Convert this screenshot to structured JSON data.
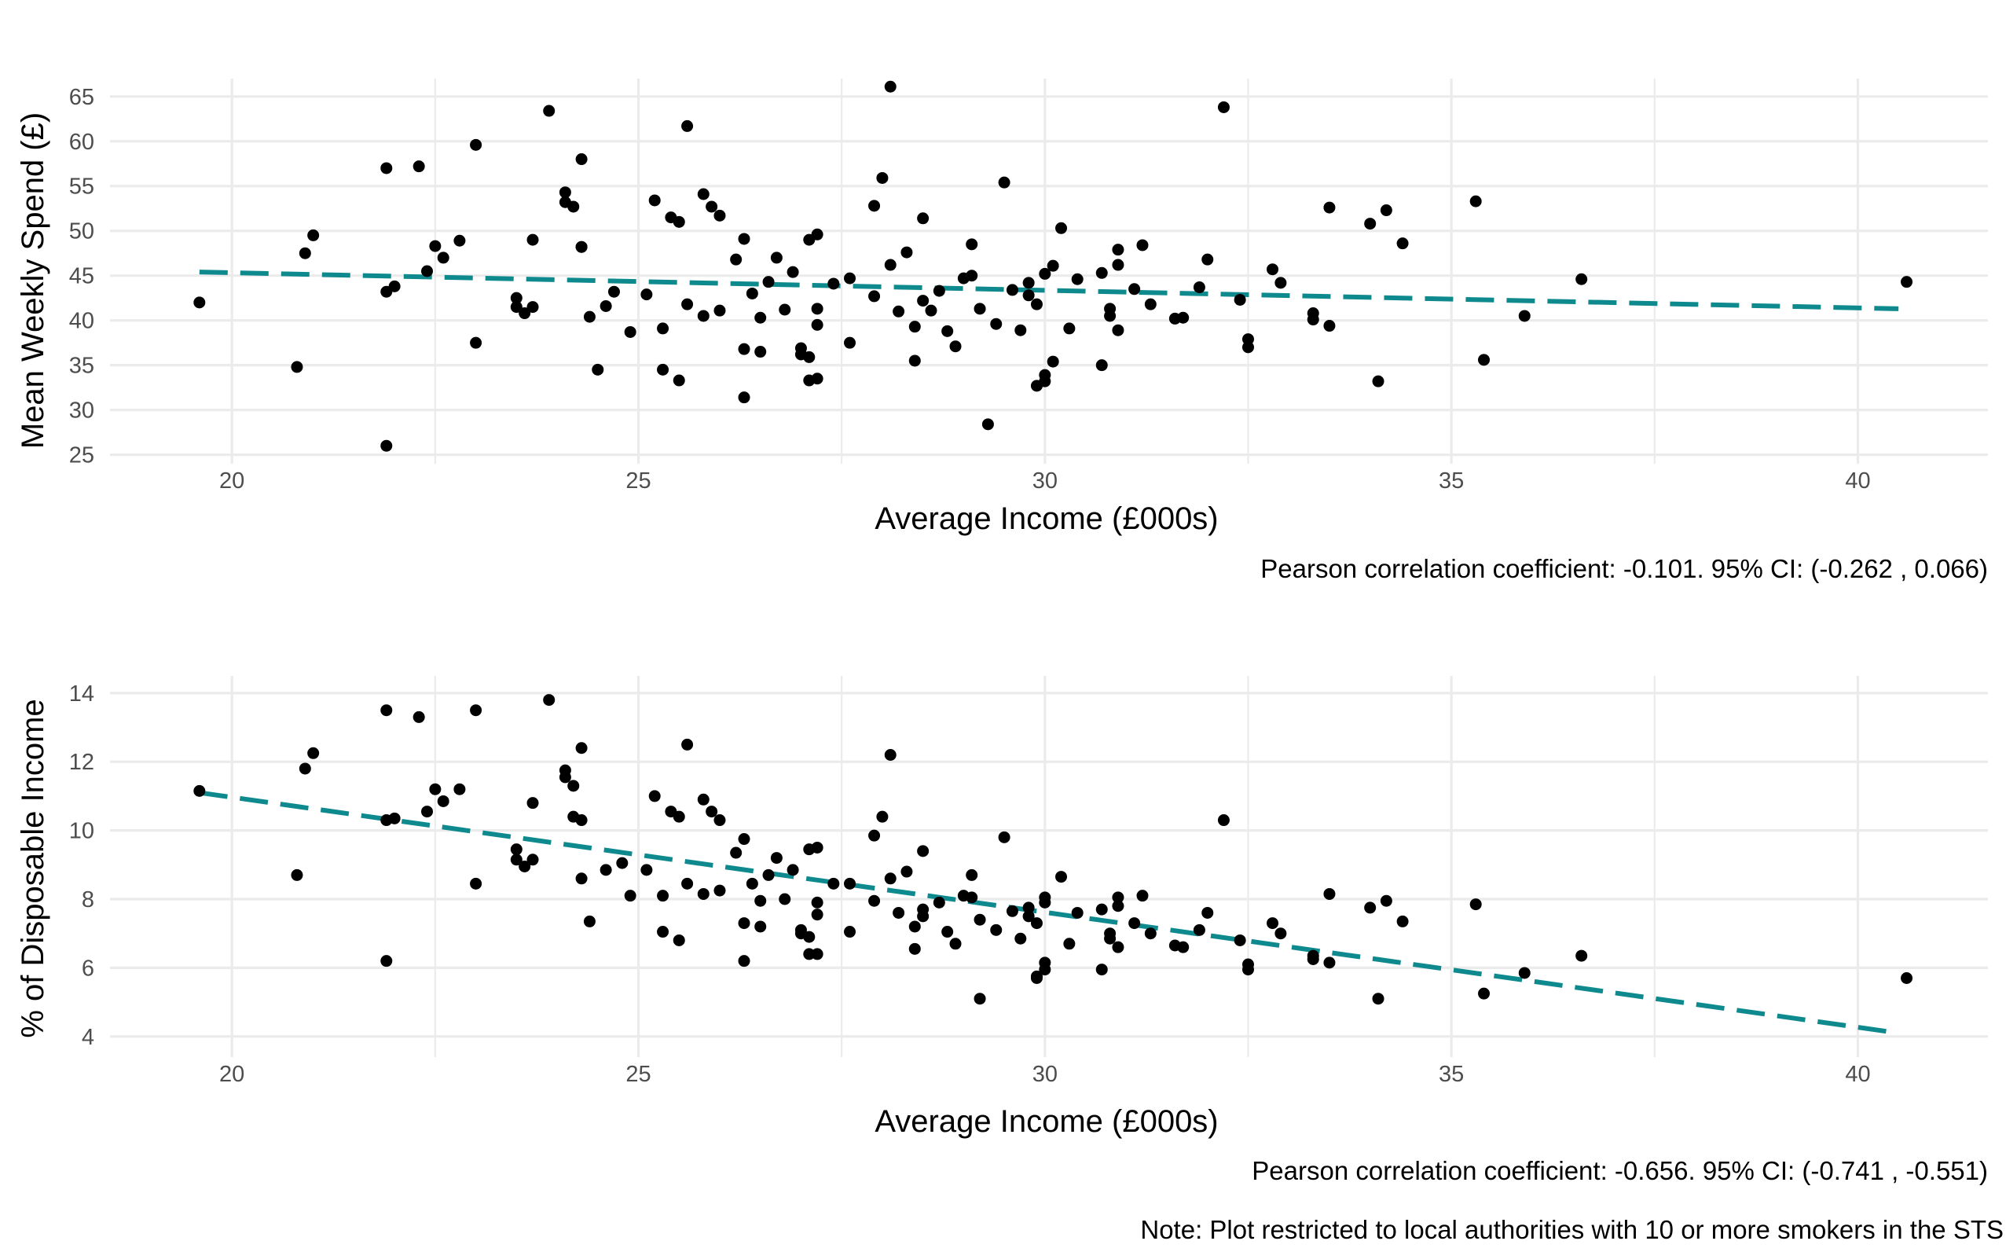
{
  "chart_data": [
    {
      "type": "scatter",
      "xlabel": "Average Income (£000s)",
      "ylabel": "Mean Weekly Spend (£)",
      "caption": "Pearson correlation coefficient: -0.101. 95% CI: (-0.262 , 0.066)",
      "xlim": [
        18.5,
        41.6
      ],
      "ylim": [
        24,
        67
      ],
      "x_ticks": [
        20,
        25,
        30,
        35,
        40
      ],
      "y_ticks": [
        25,
        30,
        35,
        40,
        45,
        50,
        55,
        60,
        65
      ],
      "x_tick_labels": [
        "20",
        "25",
        "30",
        "35",
        "40"
      ],
      "y_tick_labels": [
        "25",
        "30",
        "35",
        "40",
        "45",
        "50",
        "55",
        "60",
        "65"
      ],
      "grid": true,
      "trend_color": "#0e8a8f",
      "point_color": "#000000",
      "trend": {
        "x": [
          19.6,
          40.5
        ],
        "y": [
          45.4,
          41.3
        ]
      },
      "points": [
        [
          19.6,
          42.0
        ],
        [
          20.8,
          34.8
        ],
        [
          20.9,
          47.5
        ],
        [
          21.0,
          49.5
        ],
        [
          21.9,
          26.0
        ],
        [
          21.9,
          57.0
        ],
        [
          21.9,
          43.2
        ],
        [
          22.0,
          43.8
        ],
        [
          22.3,
          57.2
        ],
        [
          22.4,
          45.5
        ],
        [
          22.5,
          48.3
        ],
        [
          22.6,
          47.0
        ],
        [
          22.8,
          48.9
        ],
        [
          23.0,
          59.6
        ],
        [
          23.0,
          37.5
        ],
        [
          23.5,
          42.5
        ],
        [
          23.5,
          41.5
        ],
        [
          23.6,
          40.8
        ],
        [
          23.7,
          49.0
        ],
        [
          23.7,
          41.5
        ],
        [
          23.9,
          63.4
        ],
        [
          24.1,
          54.3
        ],
        [
          24.1,
          53.2
        ],
        [
          24.2,
          52.7
        ],
        [
          24.3,
          48.2
        ],
        [
          24.3,
          58.0
        ],
        [
          24.3,
          48.2
        ],
        [
          24.4,
          40.4
        ],
        [
          24.5,
          34.5
        ],
        [
          24.6,
          41.6
        ],
        [
          24.7,
          43.2
        ],
        [
          24.9,
          38.7
        ],
        [
          25.1,
          42.9
        ],
        [
          25.2,
          53.4
        ],
        [
          25.3,
          39.1
        ],
        [
          25.3,
          34.5
        ],
        [
          25.4,
          51.5
        ],
        [
          25.5,
          51.0
        ],
        [
          25.5,
          33.3
        ],
        [
          25.6,
          61.7
        ],
        [
          25.6,
          41.8
        ],
        [
          25.8,
          40.5
        ],
        [
          25.8,
          54.1
        ],
        [
          25.9,
          52.7
        ],
        [
          26.0,
          41.1
        ],
        [
          26.0,
          51.7
        ],
        [
          26.2,
          46.8
        ],
        [
          26.3,
          36.8
        ],
        [
          26.3,
          49.1
        ],
        [
          26.3,
          31.4
        ],
        [
          26.4,
          43.0
        ],
        [
          26.5,
          36.5
        ],
        [
          26.5,
          40.3
        ],
        [
          26.6,
          44.3
        ],
        [
          26.7,
          47.0
        ],
        [
          26.8,
          41.2
        ],
        [
          26.9,
          45.4
        ],
        [
          27.0,
          36.2
        ],
        [
          27.0,
          36.9
        ],
        [
          27.1,
          35.9
        ],
        [
          27.1,
          33.3
        ],
        [
          27.1,
          49.0
        ],
        [
          27.2,
          49.6
        ],
        [
          27.2,
          41.3
        ],
        [
          27.2,
          39.5
        ],
        [
          27.2,
          33.5
        ],
        [
          27.4,
          44.1
        ],
        [
          27.6,
          44.7
        ],
        [
          27.6,
          37.5
        ],
        [
          27.9,
          52.8
        ],
        [
          27.9,
          42.7
        ],
        [
          28.0,
          55.9
        ],
        [
          28.1,
          46.2
        ],
        [
          28.2,
          41.0
        ],
        [
          28.1,
          66.1
        ],
        [
          28.3,
          47.6
        ],
        [
          28.4,
          35.5
        ],
        [
          28.4,
          39.3
        ],
        [
          28.5,
          51.4
        ],
        [
          28.5,
          42.2
        ],
        [
          28.6,
          41.1
        ],
        [
          28.7,
          43.3
        ],
        [
          28.8,
          38.8
        ],
        [
          28.9,
          37.1
        ],
        [
          29.0,
          44.7
        ],
        [
          29.1,
          48.5
        ],
        [
          29.1,
          45.0
        ],
        [
          29.2,
          41.3
        ],
        [
          29.3,
          28.4
        ],
        [
          29.4,
          39.6
        ],
        [
          29.5,
          55.4
        ],
        [
          29.6,
          43.4
        ],
        [
          29.7,
          38.9
        ],
        [
          29.8,
          44.2
        ],
        [
          29.8,
          42.8
        ],
        [
          29.9,
          41.8
        ],
        [
          29.9,
          32.7
        ],
        [
          30.0,
          33.2
        ],
        [
          30.0,
          33.9
        ],
        [
          30.0,
          45.2
        ],
        [
          30.1,
          46.1
        ],
        [
          30.1,
          35.4
        ],
        [
          30.2,
          50.3
        ],
        [
          30.3,
          39.1
        ],
        [
          30.4,
          44.6
        ],
        [
          30.7,
          45.3
        ],
        [
          30.7,
          35.0
        ],
        [
          30.8,
          41.3
        ],
        [
          30.8,
          40.5
        ],
        [
          30.9,
          46.2
        ],
        [
          30.9,
          47.9
        ],
        [
          30.9,
          38.9
        ],
        [
          31.1,
          43.5
        ],
        [
          31.2,
          48.4
        ],
        [
          31.3,
          41.8
        ],
        [
          31.6,
          40.2
        ],
        [
          31.7,
          40.3
        ],
        [
          31.9,
          43.7
        ],
        [
          32.0,
          46.8
        ],
        [
          32.2,
          63.8
        ],
        [
          32.4,
          42.3
        ],
        [
          32.5,
          37.9
        ],
        [
          32.5,
          37.0
        ],
        [
          32.8,
          45.7
        ],
        [
          32.9,
          44.2
        ],
        [
          33.3,
          40.8
        ],
        [
          33.3,
          40.1
        ],
        [
          33.5,
          52.6
        ],
        [
          33.5,
          39.4
        ],
        [
          34.0,
          50.8
        ],
        [
          34.1,
          33.2
        ],
        [
          34.2,
          52.3
        ],
        [
          34.4,
          48.6
        ],
        [
          35.3,
          53.3
        ],
        [
          35.4,
          35.6
        ],
        [
          35.9,
          40.5
        ],
        [
          36.6,
          44.6
        ],
        [
          40.6,
          44.3
        ]
      ]
    },
    {
      "type": "scatter",
      "xlabel": "Average Income (£000s)",
      "ylabel": "% of Disposable Income",
      "caption": "Pearson correlation coefficient: -0.656. 95% CI: (-0.741 , -0.551)",
      "xlim": [
        18.5,
        41.6
      ],
      "ylim": [
        3.4,
        14.5
      ],
      "x_ticks": [
        20,
        25,
        30,
        35,
        40
      ],
      "y_ticks": [
        4,
        6,
        8,
        10,
        12,
        14
      ],
      "x_tick_labels": [
        "20",
        "25",
        "30",
        "35",
        "40"
      ],
      "y_tick_labels": [
        "4",
        "6",
        "8",
        "10",
        "12",
        "14"
      ],
      "grid": true,
      "trend_color": "#0e8a8f",
      "point_color": "#000000",
      "trend": {
        "x": [
          19.6,
          40.5
        ],
        "y": [
          11.1,
          4.1
        ]
      },
      "points": [
        [
          19.6,
          11.15
        ],
        [
          20.8,
          8.7
        ],
        [
          20.9,
          11.8
        ],
        [
          21.0,
          12.25
        ],
        [
          21.9,
          6.2
        ],
        [
          21.9,
          13.5
        ],
        [
          21.9,
          10.3
        ],
        [
          22.0,
          10.35
        ],
        [
          22.3,
          13.3
        ],
        [
          22.4,
          10.55
        ],
        [
          22.5,
          11.2
        ],
        [
          22.6,
          10.85
        ],
        [
          22.8,
          11.2
        ],
        [
          23.0,
          13.5
        ],
        [
          23.0,
          8.45
        ],
        [
          23.5,
          9.45
        ],
        [
          23.5,
          9.15
        ],
        [
          23.6,
          8.95
        ],
        [
          23.7,
          10.8
        ],
        [
          23.7,
          9.15
        ],
        [
          23.9,
          13.8
        ],
        [
          24.1,
          11.75
        ],
        [
          24.1,
          11.55
        ],
        [
          24.2,
          11.3
        ],
        [
          24.2,
          10.4
        ],
        [
          24.3,
          12.4
        ],
        [
          24.3,
          10.3
        ],
        [
          24.3,
          8.6
        ],
        [
          24.4,
          7.35
        ],
        [
          24.6,
          8.85
        ],
        [
          24.8,
          9.05
        ],
        [
          24.9,
          8.1
        ],
        [
          25.1,
          8.85
        ],
        [
          25.2,
          11.0
        ],
        [
          25.3,
          8.1
        ],
        [
          25.3,
          7.05
        ],
        [
          25.4,
          10.55
        ],
        [
          25.5,
          10.4
        ],
        [
          25.5,
          6.8
        ],
        [
          25.6,
          12.5
        ],
        [
          25.6,
          8.45
        ],
        [
          25.8,
          8.15
        ],
        [
          25.8,
          10.9
        ],
        [
          25.9,
          10.55
        ],
        [
          26.0,
          8.25
        ],
        [
          26.0,
          10.3
        ],
        [
          26.2,
          9.35
        ],
        [
          26.3,
          7.3
        ],
        [
          26.3,
          9.75
        ],
        [
          26.3,
          6.2
        ],
        [
          26.4,
          8.45
        ],
        [
          26.5,
          7.2
        ],
        [
          26.5,
          7.95
        ],
        [
          26.6,
          8.7
        ],
        [
          26.7,
          9.2
        ],
        [
          26.8,
          8.0
        ],
        [
          26.9,
          8.85
        ],
        [
          27.0,
          7.1
        ],
        [
          27.0,
          7.0
        ],
        [
          27.1,
          6.9
        ],
        [
          27.1,
          6.4
        ],
        [
          27.1,
          9.45
        ],
        [
          27.2,
          9.5
        ],
        [
          27.2,
          7.9
        ],
        [
          27.2,
          7.55
        ],
        [
          27.2,
          6.4
        ],
        [
          27.4,
          8.45
        ],
        [
          27.6,
          8.45
        ],
        [
          27.6,
          7.05
        ],
        [
          27.9,
          9.85
        ],
        [
          27.9,
          7.95
        ],
        [
          28.0,
          10.4
        ],
        [
          28.1,
          8.6
        ],
        [
          28.2,
          7.6
        ],
        [
          28.1,
          12.2
        ],
        [
          28.3,
          8.8
        ],
        [
          28.4,
          6.55
        ],
        [
          28.4,
          7.2
        ],
        [
          28.5,
          9.4
        ],
        [
          28.5,
          7.7
        ],
        [
          28.5,
          7.5
        ],
        [
          28.7,
          7.9
        ],
        [
          28.8,
          7.05
        ],
        [
          28.9,
          6.7
        ],
        [
          29.0,
          8.1
        ],
        [
          29.1,
          8.7
        ],
        [
          29.1,
          8.05
        ],
        [
          29.2,
          7.4
        ],
        [
          29.2,
          5.1
        ],
        [
          29.4,
          7.1
        ],
        [
          29.5,
          9.8
        ],
        [
          29.6,
          7.65
        ],
        [
          29.7,
          6.85
        ],
        [
          29.8,
          7.75
        ],
        [
          29.8,
          7.5
        ],
        [
          29.9,
          7.3
        ],
        [
          29.9,
          5.7
        ],
        [
          29.9,
          5.75
        ],
        [
          30.0,
          5.95
        ],
        [
          30.0,
          7.9
        ],
        [
          30.0,
          8.05
        ],
        [
          30.0,
          6.15
        ],
        [
          30.2,
          8.65
        ],
        [
          30.3,
          6.7
        ],
        [
          30.4,
          7.6
        ],
        [
          30.7,
          7.7
        ],
        [
          30.7,
          5.95
        ],
        [
          30.8,
          7.0
        ],
        [
          30.8,
          6.85
        ],
        [
          30.9,
          7.8
        ],
        [
          30.9,
          8.05
        ],
        [
          30.9,
          6.6
        ],
        [
          31.1,
          7.3
        ],
        [
          31.2,
          8.1
        ],
        [
          31.3,
          7.0
        ],
        [
          31.6,
          6.65
        ],
        [
          31.7,
          6.6
        ],
        [
          31.9,
          7.1
        ],
        [
          32.0,
          7.6
        ],
        [
          32.2,
          10.3
        ],
        [
          32.4,
          6.8
        ],
        [
          32.5,
          6.1
        ],
        [
          32.5,
          5.95
        ],
        [
          32.8,
          7.3
        ],
        [
          32.9,
          7.0
        ],
        [
          33.3,
          6.35
        ],
        [
          33.3,
          6.25
        ],
        [
          33.5,
          8.15
        ],
        [
          33.5,
          6.15
        ],
        [
          34.0,
          7.75
        ],
        [
          34.1,
          5.1
        ],
        [
          34.2,
          7.95
        ],
        [
          34.4,
          7.35
        ],
        [
          35.3,
          7.85
        ],
        [
          35.4,
          5.25
        ],
        [
          35.9,
          5.85
        ],
        [
          36.6,
          6.35
        ],
        [
          40.6,
          5.7
        ]
      ]
    }
  ],
  "note": "Note: Plot restricted to local authorities with 10 or more smokers in the STS"
}
